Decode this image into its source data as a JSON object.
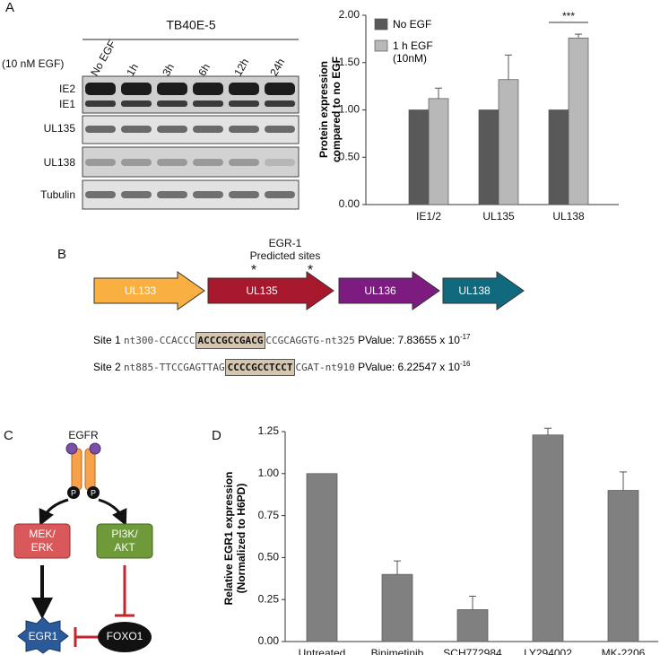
{
  "chart_data": [
    {
      "type": "bar",
      "ylabel": "Protein expression compared to no EGF",
      "categories": [
        "IE1/2",
        "UL135",
        "UL138"
      ],
      "series": [
        {
          "name": "No EGF",
          "color": "#595959",
          "values": [
            1,
            1,
            1
          ]
        },
        {
          "name": "1 h EGF (10nM)",
          "color": "#b8b8b8",
          "values": [
            1.12,
            1.32,
            1.76
          ],
          "errors": [
            0.11,
            0.26,
            0.04
          ]
        }
      ],
      "ylim": [
        0,
        2
      ],
      "yticks": [
        {
          "value": 0,
          "label": "0.00"
        },
        {
          "value": 0.5,
          "label": "0.50"
        },
        {
          "value": 1,
          "label": "1.00"
        },
        {
          "value": 1.5,
          "label": "1.50"
        },
        {
          "value": 2,
          "label": "2.00"
        }
      ],
      "annotation": "***",
      "legend": "upper left"
    },
    {
      "type": "bar",
      "panel_label": "D",
      "ylabel": "Relative EGR1 expression (Normalized to H6PD)",
      "categories": [
        "Untreated",
        "Binimetinib",
        "SCH772984",
        "LY294002",
        "MK-2206"
      ],
      "values": [
        1,
        0.4,
        0.19,
        1.23,
        0.9
      ],
      "errors": [
        null,
        0.08,
        0.08,
        0.04,
        0.11
      ],
      "color": "#808080",
      "ylim": [
        0,
        1.25
      ],
      "yticks": [
        {
          "value": 0,
          "label": "0.00"
        },
        {
          "value": 0.25,
          "label": "0.25"
        },
        {
          "value": 0.5,
          "label": "0.50"
        },
        {
          "value": 0.75,
          "label": "0.75"
        },
        {
          "value": 1,
          "label": "1.00"
        },
        {
          "value": 1.25,
          "label": "1.25"
        }
      ]
    }
  ],
  "blot": {
    "panel_label": "A",
    "title": "TB40E-5",
    "treatment": "(10 nM EGF)",
    "lanes": [
      "No EGF",
      "1h",
      "3h",
      "6h",
      "12h",
      "24h"
    ],
    "rows": [
      "IE2",
      "IE1",
      "UL135",
      "UL138",
      "Tubulin"
    ]
  },
  "genes": {
    "panel_label": "B",
    "annotation": [
      "EGR-1",
      "Predicted sites"
    ],
    "marker": "*",
    "arrows": [
      "UL133",
      "UL135",
      "UL136",
      "UL138"
    ],
    "sites": [
      {
        "label": "Site 1",
        "prefix": "nt300-CCACCC",
        "highlight": "ACCCGCCGACG",
        "suffix": "CCGCAGGTG-nt325",
        "pvalue": "PValue: 7.83655 x 10",
        "exponent": "-17"
      },
      {
        "label": "Site 2",
        "prefix": "nt885-TTCCGAGTTAG",
        "highlight": "CCCCGCCTCCT",
        "suffix": "CGAT-nt910",
        "pvalue": "PValue: 6.22547 x 10",
        "exponent": "-16"
      }
    ]
  },
  "pathway": {
    "panel_label": "C",
    "receptor": "EGFR",
    "phospho": "P",
    "mek": [
      "MEK/",
      "ERK"
    ],
    "pi3k": [
      "PI3K/",
      "AKT"
    ],
    "egr1": "EGR1",
    "foxo1": "FOXO1"
  }
}
